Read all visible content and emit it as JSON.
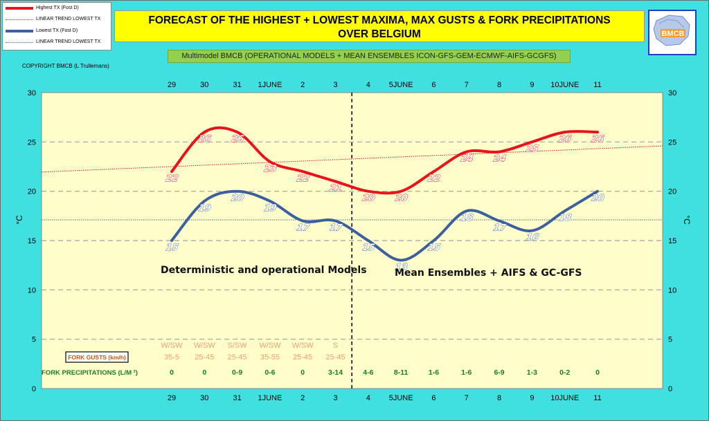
{
  "chart_data": {
    "type": "line",
    "title_lines": [
      "FORECAST OF THE HIGHEST + LOWEST MAXIMA, MAX GUSTS & FORK PRECIPITATIONS",
      "OVER BELGIUM"
    ],
    "subtitle": "Multimodel BMCB (OPERATIONAL MODELS + MEAN ENSEMBLES  ICON-GFS-GEM-ECMWF-AIFS-GCGFS)",
    "copyright": "COPYRIGHT BMCB (L Trullemans)",
    "logo_text": "BMCB",
    "categories": [
      "29",
      "30",
      "31",
      "1JUNE",
      "2",
      "3",
      "4",
      "5JUNE",
      "6",
      "7",
      "8",
      "9",
      "10JUNE",
      "11"
    ],
    "series": [
      {
        "name": "Highest TX (Fost D)",
        "color": "#e8141c",
        "values": [
          22,
          26,
          26,
          23,
          22,
          21,
          20,
          20,
          22,
          24,
          24,
          25,
          26,
          26
        ],
        "labels": [
          "22",
          "26",
          "26",
          "23",
          "22",
          "21",
          "20",
          "20",
          "22",
          "24",
          "24",
          "25",
          "26",
          "26"
        ]
      },
      {
        "name": "Lowest TX (Fost D)",
        "color": "#3d5f9e",
        "values": [
          15,
          19,
          20,
          19,
          17,
          17,
          15,
          13,
          15,
          18,
          17,
          16,
          18,
          20
        ],
        "labels": [
          "15",
          "19",
          "20",
          "19",
          "17",
          "17",
          "15",
          "13",
          "15",
          "18",
          "17",
          "16",
          "18",
          "20"
        ]
      }
    ],
    "trend_lines": [
      {
        "name": "LINEAR TREND LOWEST  TX",
        "color": "#e8141c",
        "start": 21.95,
        "end": 24.6
      },
      {
        "name": "LINEAR TREND LOWEST TX",
        "color": "#3d5f9e",
        "start": 17.1,
        "end": 17.1
      }
    ],
    "ylabel": "°C",
    "ylim": [
      0,
      30
    ],
    "yticks": [
      "0",
      "5",
      "10",
      "15",
      "20",
      "25",
      "30"
    ],
    "grid": true,
    "gusts_label": "FORK GUSTS (km/h)",
    "gust_dirs": [
      "W/SW",
      "W/SW",
      "S/SW",
      "W/SW",
      "W/SW",
      "S"
    ],
    "gust_ranges": [
      "35-5",
      "25-45",
      "25-45",
      "35-55",
      "25-45",
      "25-45"
    ],
    "precip_label": "FORK PRECIPITATIONS (L/M ²)",
    "precip": [
      "0",
      "0",
      "0-9",
      "0-6",
      "0",
      "3-14",
      "4-6",
      "8-11",
      "1-6",
      "1-6",
      "6-9",
      "1-3",
      "0-2",
      "0"
    ],
    "annotations": [
      "Deterministic and operational Models",
      "Mean Ensembles + AIFS & GC-GFS"
    ],
    "colors": {
      "background": "#40e0e0",
      "plot_area": "#ffffcc",
      "gusts": "#f4a070",
      "precip": "#1f7a1f",
      "grid": "#a0a0a0",
      "divider": "#000000"
    }
  },
  "legend": {
    "items": [
      {
        "label": "Highest TX (Fost D)",
        "color": "#e8141c",
        "style": "thick"
      },
      {
        "label": "LINEAR TREND LOWEST  TX",
        "color": "#e8141c",
        "style": "thin"
      },
      {
        "label": "Lowest TX (Fost D)",
        "color": "#3d5f9e",
        "style": "thick"
      },
      {
        "label": "LINEAR TREND LOWEST TX",
        "color": "#3d5f9e",
        "style": "thin"
      }
    ]
  }
}
